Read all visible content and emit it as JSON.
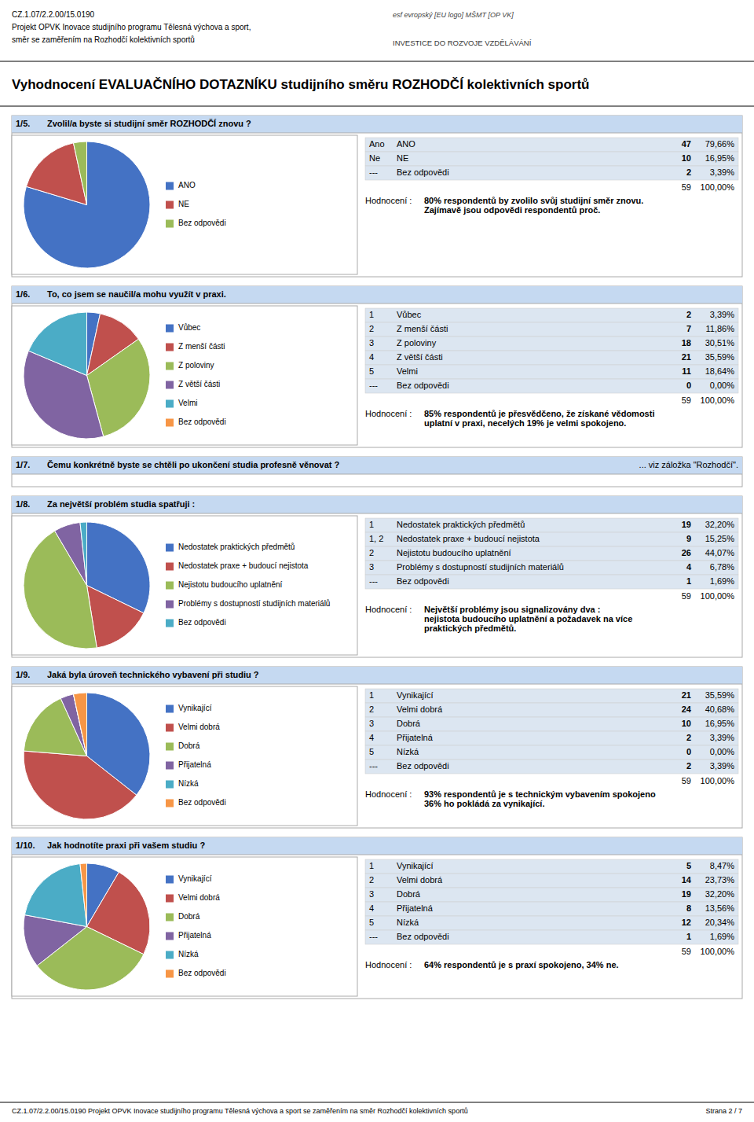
{
  "header_lines": [
    "CZ.1.07/2.2.00/15.0190",
    "Projekt OPVK Inovace studijního programu Tělesná výchova a sport,",
    "směr se zaměřením na Rozhodčí kolektivních sportů"
  ],
  "logo_texts": [
    "esf  evropský    [EU logo]   MŠMT    [OP VK]",
    "INVESTICE DO ROZVOJE VZDĚLÁVÁNÍ"
  ],
  "title": "Vyhodnocení EVALUAČNÍHO DOTAZNÍKU studijního směru ROZHODČÍ kolektivních sportů",
  "footer": "CZ.1.07/2.2.00/15.0190 Projekt OPVK Inovace studijního programu Tělesná výchova a sport se zaměřením na směr Rozhodčí kolektivních sportů",
  "footer_right": "Strana 2 / 7",
  "chart_data": [
    {
      "type": "pie",
      "id": "1/5.",
      "title": "Zvolil/a byste si studijní směr ROZHODČÍ znovu ?",
      "categories": [
        "ANO",
        "NE",
        "Bez odpovědi"
      ],
      "short_labels": [
        "Ano",
        "Ne",
        "---"
      ],
      "values": [
        47,
        10,
        2
      ],
      "percents": [
        {
          "value": 79.66,
          "label": "79,66%"
        },
        {
          "value": 16.95,
          "label": "16,95%"
        },
        {
          "value": 3.39,
          "label": "3,39%"
        }
      ],
      "total": 59,
      "total_percent": {
        "value": 100,
        "label": "100,00%"
      },
      "colors": [
        "#4472C4",
        "#C0504D",
        "#9BBB59"
      ],
      "assessment_label": "Hodnocení :",
      "assessment": [
        "80% respondentů by zvolilo svůj studijní směr znovu.",
        "Zajímavě jsou odpovědi respondentů proč."
      ]
    },
    {
      "type": "pie",
      "id": "1/6.",
      "title": "To, co jsem se naučil/a mohu využít v praxi.",
      "categories": [
        "Vůbec",
        "Z menší části",
        "Z poloviny",
        "Z větší části",
        "Velmi",
        "Bez odpovědi"
      ],
      "short_labels": [
        "1",
        "2",
        "3",
        "4",
        "5",
        "---"
      ],
      "values": [
        2,
        7,
        18,
        21,
        11,
        0
      ],
      "percents": [
        {
          "value": 3.39,
          "label": "3,39%"
        },
        {
          "value": 11.86,
          "label": "11,86%"
        },
        {
          "value": 30.51,
          "label": "30,51%"
        },
        {
          "value": 35.59,
          "label": "35,59%"
        },
        {
          "value": 18.64,
          "label": "18,64%"
        },
        {
          "value": 0,
          "label": "0,00%"
        }
      ],
      "total": 59,
      "total_percent": {
        "value": 100,
        "label": "100,00%"
      },
      "colors": [
        "#4472C4",
        "#C0504D",
        "#9BBB59",
        "#8064A2",
        "#4BACC6",
        "#F79646"
      ],
      "assessment_label": "Hodnocení :",
      "assessment": [
        "85% respondentů je přesvědčeno, že získané vědomosti",
        "uplatní v praxi, necelých 19% je velmi spokojeno."
      ]
    },
    {
      "type": "text",
      "id": "1/7.",
      "title": "Čemu konkrétně byste se chtěli po ukončení studia profesně věnovat ?",
      "note": "... viz záložka \"Rozhodčí\"."
    },
    {
      "type": "pie",
      "id": "1/8.",
      "title": "Za největší problém studia spatřuji :",
      "categories": [
        "Nedostatek praktických předmětů",
        "Nedostatek praxe + budoucí nejistota",
        "Nejistotu budoucího uplatnění",
        "Problémy s dostupností studijních materiálů",
        "Bez odpovědi"
      ],
      "short_labels": [
        "1",
        "1, 2",
        "2",
        "3",
        "---"
      ],
      "values": [
        19,
        9,
        26,
        4,
        1
      ],
      "percents": [
        {
          "value": 32.2,
          "label": "32,20%"
        },
        {
          "value": 15.25,
          "label": "15,25%"
        },
        {
          "value": 44.07,
          "label": "44,07%"
        },
        {
          "value": 6.78,
          "label": "6,78%"
        },
        {
          "value": 1.69,
          "label": "1,69%"
        }
      ],
      "total": 59,
      "total_percent": {
        "value": 100,
        "label": "100,00%"
      },
      "colors": [
        "#4472C4",
        "#C0504D",
        "#9BBB59",
        "#8064A2",
        "#4BACC6"
      ],
      "assessment_label": "Hodnocení :",
      "assessment": [
        "Největší problémy jsou signalizovány dva :",
        "nejistota budoucího uplatnění a požadavek na více",
        "praktických předmětů."
      ]
    },
    {
      "type": "pie",
      "id": "1/9.",
      "title": "Jaká byla úroveň technického vybavení při studiu ?",
      "categories": [
        "Vynikající",
        "Velmi dobrá",
        "Dobrá",
        "Přijatelná",
        "Nízká",
        "Bez odpovědi"
      ],
      "short_labels": [
        "1",
        "2",
        "3",
        "4",
        "5",
        "---"
      ],
      "values": [
        21,
        24,
        10,
        2,
        0,
        2
      ],
      "percents": [
        {
          "value": 35.59,
          "label": "35,59%"
        },
        {
          "value": 40.68,
          "label": "40,68%"
        },
        {
          "value": 16.95,
          "label": "16,95%"
        },
        {
          "value": 3.39,
          "label": "3,39%"
        },
        {
          "value": 0,
          "label": "0,00%"
        },
        {
          "value": 3.39,
          "label": "3,39%"
        }
      ],
      "total": 59,
      "total_percent": {
        "value": 100,
        "label": "100,00%"
      },
      "colors": [
        "#4472C4",
        "#C0504D",
        "#9BBB59",
        "#8064A2",
        "#4BACC6",
        "#F79646"
      ],
      "assessment_label": "Hodnocení :",
      "assessment": [
        "93% respondentů je s technickým vybavením spokojeno",
        "36% ho pokládá za vynikající."
      ]
    },
    {
      "type": "pie",
      "id": "1/10.",
      "title": "Jak hodnotíte praxi při vašem studiu ?",
      "categories": [
        "Vynikající",
        "Velmi dobrá",
        "Dobrá",
        "Přijatelná",
        "Nízká",
        "Bez odpovědi"
      ],
      "short_labels": [
        "1",
        "2",
        "3",
        "4",
        "5",
        "---"
      ],
      "values": [
        5,
        14,
        19,
        8,
        12,
        1
      ],
      "percents": [
        {
          "value": 8.47,
          "label": "8,47%"
        },
        {
          "value": 23.73,
          "label": "23,73%"
        },
        {
          "value": 32.2,
          "label": "32,20%"
        },
        {
          "value": 13.56,
          "label": "13,56%"
        },
        {
          "value": 20.34,
          "label": "20,34%"
        },
        {
          "value": 1.69,
          "label": "1,69%"
        }
      ],
      "total": 59,
      "total_percent": {
        "value": 100,
        "label": "100,00%"
      },
      "colors": [
        "#4472C4",
        "#C0504D",
        "#9BBB59",
        "#8064A2",
        "#4BACC6",
        "#F79646"
      ],
      "assessment_label": "Hodnocení :",
      "assessment": [
        "64% respondentů je s praxí spokojeno, 34% ne."
      ]
    }
  ]
}
